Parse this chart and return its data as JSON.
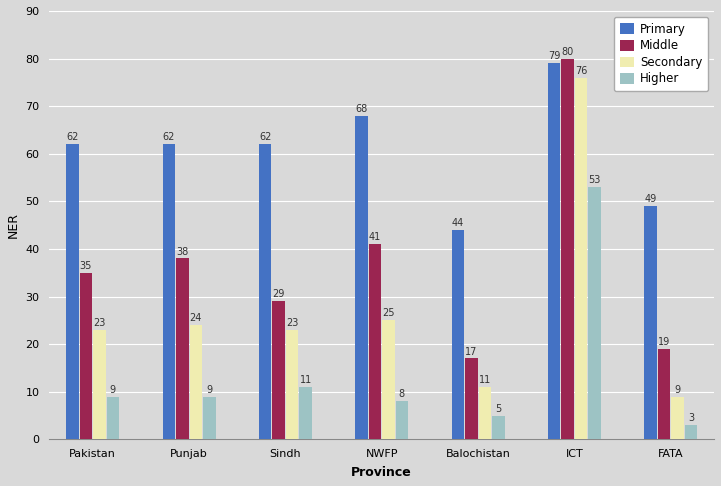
{
  "provinces": [
    "Pakistan",
    "Punjab",
    "Sindh",
    "NWFP",
    "Balochistan",
    "ICT",
    "FATA"
  ],
  "series": {
    "Primary": [
      62,
      62,
      62,
      68,
      44,
      79,
      49
    ],
    "Middle": [
      35,
      38,
      29,
      41,
      17,
      80,
      19
    ],
    "Secondary": [
      23,
      24,
      23,
      25,
      11,
      76,
      9
    ],
    "Higher": [
      9,
      9,
      11,
      8,
      5,
      53,
      3
    ]
  },
  "colors": {
    "Primary": "#4472C4",
    "Middle": "#9B2551",
    "Secondary": "#F0EDB0",
    "Higher": "#9DC3C4"
  },
  "legend_labels": [
    "Primary",
    "Middle",
    "Secondary",
    "Higher"
  ],
  "xlabel": "Province",
  "ylabel": "NER",
  "ylim": [
    0,
    90
  ],
  "yticks": [
    0,
    10,
    20,
    30,
    40,
    50,
    60,
    70,
    80,
    90
  ],
  "bar_width": 0.13,
  "background_color": "#D9D9D9",
  "grid_color": "#FFFFFF",
  "label_fontsize": 7.0,
  "axis_label_fontsize": 9,
  "tick_fontsize": 8,
  "legend_fontsize": 8.5
}
